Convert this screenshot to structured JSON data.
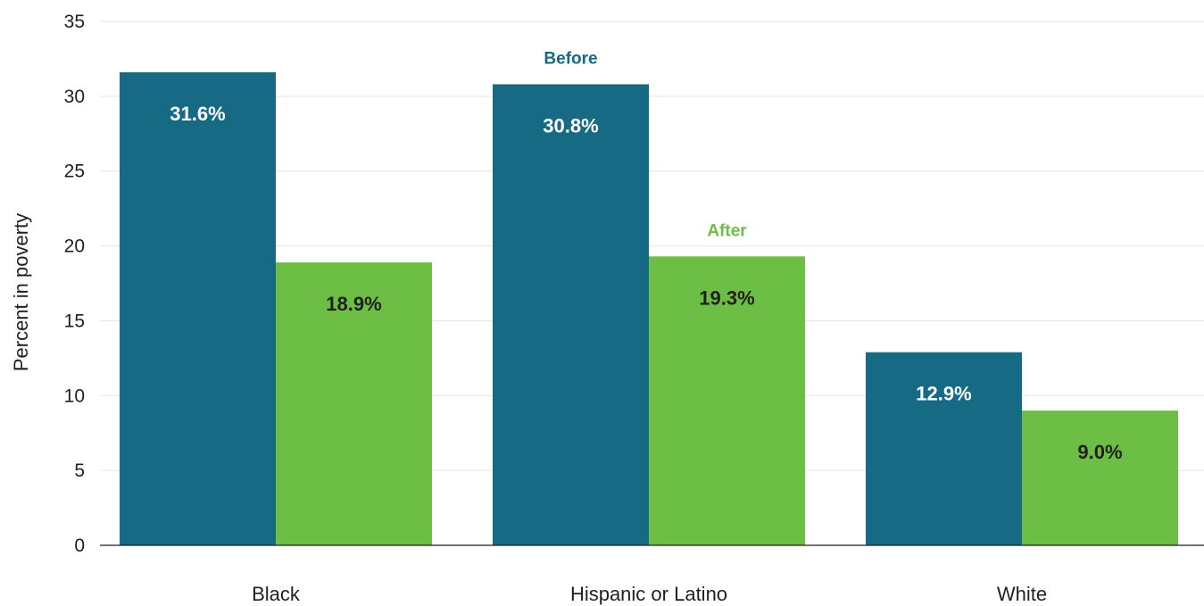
{
  "chart_data": {
    "type": "bar",
    "categories": [
      "Black",
      "Hispanic or Latino",
      "White"
    ],
    "series": [
      {
        "name": "Before",
        "values": [
          31.6,
          30.8,
          12.9
        ],
        "labels": [
          "31.6%",
          "30.8%",
          "12.9%"
        ],
        "color": "#166a84",
        "label_color": "#ffffff"
      },
      {
        "name": "After",
        "values": [
          18.9,
          19.3,
          9.0
        ],
        "labels": [
          "18.9%",
          "19.3%",
          "9.0%"
        ],
        "color": "#6dbe45",
        "label_color": "#231f20"
      }
    ],
    "series_name_colors": [
      "#166a84",
      "#6dbe45"
    ],
    "series_name_positions": [
      "above Hispanic or Latino Before bar",
      "above Hispanic or Latino After bar"
    ],
    "ylabel": "Percent in poverty",
    "ylim": [
      0,
      35
    ],
    "yticks": [
      0,
      5,
      10,
      15,
      20,
      25,
      30,
      35
    ],
    "grid": true,
    "legend": "none"
  }
}
